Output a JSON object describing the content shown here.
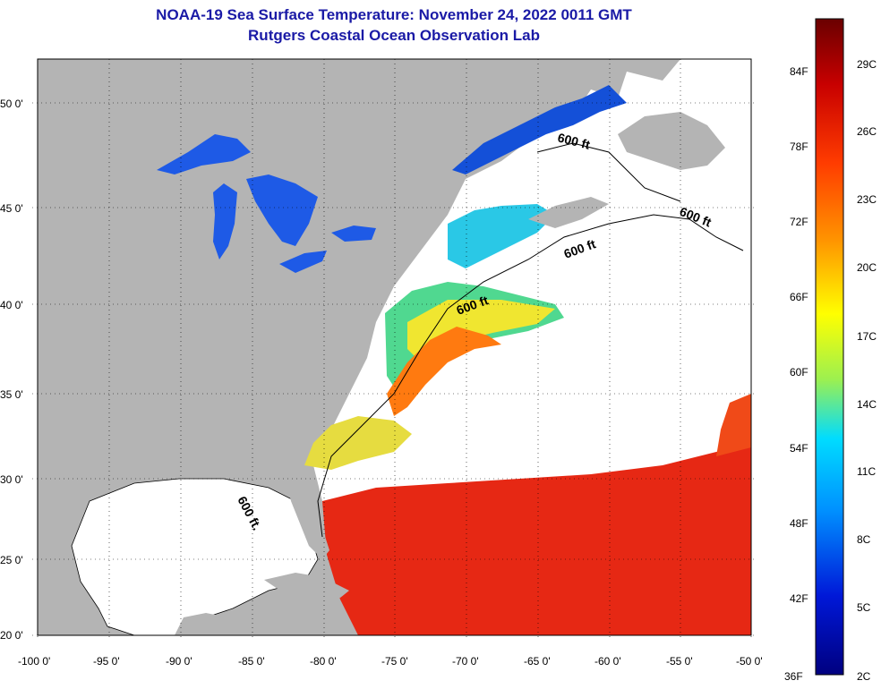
{
  "title_line1": "NOAA-19 Sea Surface Temperature:  November 24, 2022 0011 GMT",
  "title_line2": "Rutgers Coastal Ocean Observation Lab",
  "lat_labels": [
    "50 0'",
    "45 0'",
    "40 0'",
    "35 0'",
    "30 0'",
    "25 0'",
    "20 0'"
  ],
  "lon_labels": [
    "-100 0'",
    "-95 0'",
    "-90 0'",
    "-85 0'",
    "-80 0'",
    "-75 0'",
    "-70 0'",
    "-65 0'",
    "-60 0'",
    "-55 0'",
    "-50 0'"
  ],
  "contour_label": "600 ft",
  "contour_label_alt": "600 ft.",
  "colorbar": {
    "fahrenheit": [
      "84F",
      "78F",
      "72F",
      "66F",
      "60F",
      "54F",
      "48F",
      "42F",
      "36F"
    ],
    "celsius": [
      "29C",
      "26C",
      "23C",
      "17C",
      "14C",
      "11C",
      "8C",
      "5C",
      "2C"
    ],
    "celsius_20": "20C",
    "colors": [
      "#6a0000",
      "#d40000",
      "#ff4a00",
      "#ffa000",
      "#ffff00",
      "#9cf050",
      "#00d8ff",
      "#0070ff",
      "#0010c8",
      "#000080"
    ]
  },
  "colors": {
    "land": "#b4b4b4",
    "no_data": "#ffffff",
    "title": "#1a1aa6"
  }
}
